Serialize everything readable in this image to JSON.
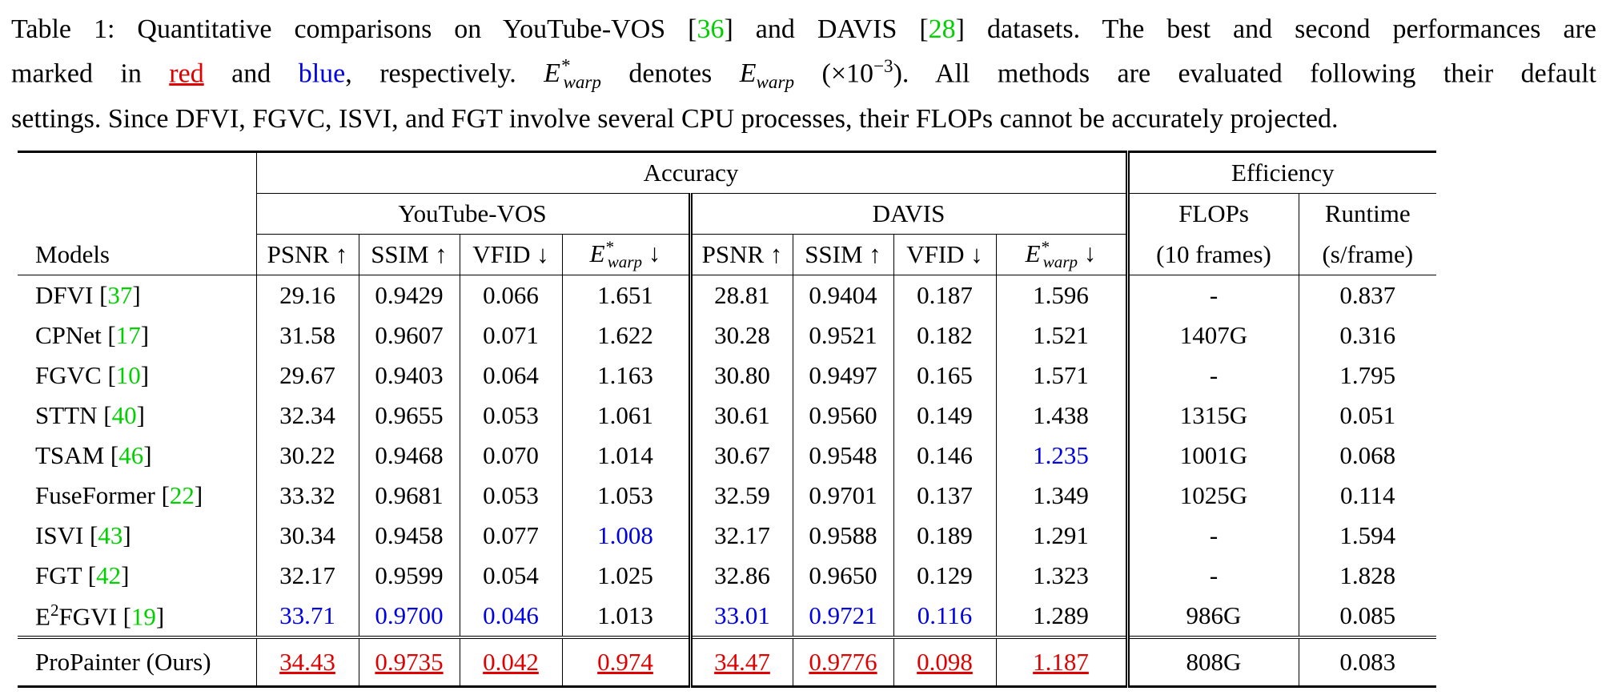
{
  "caption": {
    "line1_a": "Table 1: Quantitative comparisons on YouTube-VOS [",
    "ref1": "36",
    "line1_b": "] and DAVIS [",
    "ref2": "28",
    "line1_c": "] datasets. The best and second performances are",
    "line2_a": "marked in ",
    "red_word": "red",
    "line2_b": " and ",
    "blue_word": "blue",
    "line2_c": ", respectively. ",
    "line2_d": " denotes ",
    "line2_e": " (×10",
    "exp": "−3",
    "line2_f": "). All methods are evaluated following their default",
    "line3": "settings. Since DFVI, FGVC, ISVI, and FGT involve several CPU processes, their FLOPs cannot be accurately projected."
  },
  "headers": {
    "accuracy": "Accuracy",
    "efficiency": "Efficiency",
    "youtube": "YouTube-VOS",
    "davis": "DAVIS",
    "flops": "FLOPs",
    "runtime": "Runtime",
    "flops_sub": "(10 frames)",
    "runtime_sub": "(s/frame)",
    "models": "Models",
    "psnr": "PSNR ↑",
    "ssim": "SSIM ↑",
    "vfid": "VFID ↓",
    "ewarp_E": "E",
    "ewarp_sup": "*",
    "ewarp_sub": "warp",
    "ewarp_arrow": " ↓"
  },
  "rows": [
    {
      "name": "DFVI [",
      "ref": "37",
      "close": "]",
      "yt": [
        "29.16",
        "0.9429",
        "0.066",
        "1.651"
      ],
      "dv": [
        "28.81",
        "0.9404",
        "0.187",
        "1.596"
      ],
      "flops": "-",
      "runtime": "0.837"
    },
    {
      "name": "CPNet [",
      "ref": "17",
      "close": "]",
      "yt": [
        "31.58",
        "0.9607",
        "0.071",
        "1.622"
      ],
      "dv": [
        "30.28",
        "0.9521",
        "0.182",
        "1.521"
      ],
      "flops": "1407G",
      "runtime": "0.316"
    },
    {
      "name": "FGVC [",
      "ref": "10",
      "close": "]",
      "yt": [
        "29.67",
        "0.9403",
        "0.064",
        "1.163"
      ],
      "dv": [
        "30.80",
        "0.9497",
        "0.165",
        "1.571"
      ],
      "flops": "-",
      "runtime": "1.795"
    },
    {
      "name": "STTN [",
      "ref": "40",
      "close": "]",
      "yt": [
        "32.34",
        "0.9655",
        "0.053",
        "1.061"
      ],
      "dv": [
        "30.61",
        "0.9560",
        "0.149",
        "1.438"
      ],
      "flops": "1315G",
      "runtime": "0.051"
    },
    {
      "name": "TSAM [",
      "ref": "46",
      "close": "]",
      "yt": [
        "30.22",
        "0.9468",
        "0.070",
        "1.014"
      ],
      "dv": [
        "30.67",
        "0.9548",
        "0.146",
        "1.235"
      ],
      "flops": "1001G",
      "runtime": "0.068"
    },
    {
      "name": "FuseFormer [",
      "ref": "22",
      "close": "]",
      "yt": [
        "33.32",
        "0.9681",
        "0.053",
        "1.053"
      ],
      "dv": [
        "32.59",
        "0.9701",
        "0.137",
        "1.349"
      ],
      "flops": "1025G",
      "runtime": "0.114"
    },
    {
      "name": "ISVI [",
      "ref": "43",
      "close": "]",
      "yt": [
        "30.34",
        "0.9458",
        "0.077",
        "1.008"
      ],
      "dv": [
        "32.17",
        "0.9588",
        "0.189",
        "1.291"
      ],
      "flops": "-",
      "runtime": "1.594"
    },
    {
      "name": "FGT [",
      "ref": "42",
      "close": "]",
      "yt": [
        "32.17",
        "0.9599",
        "0.054",
        "1.025"
      ],
      "dv": [
        "32.86",
        "0.9650",
        "0.129",
        "1.323"
      ],
      "flops": "-",
      "runtime": "1.828"
    },
    {
      "name_pre": "E",
      "name_sup": "2",
      "name": "FGVI [",
      "ref": "19",
      "close": "]",
      "yt": [
        "33.71",
        "0.9700",
        "0.046",
        "1.013"
      ],
      "dv": [
        "33.01",
        "0.9721",
        "0.116",
        "1.289"
      ],
      "flops": "986G",
      "runtime": "0.085"
    },
    {
      "name": "ProPainter (Ours)",
      "yt": [
        "34.43",
        "0.9735",
        "0.042",
        "0.974"
      ],
      "dv": [
        "34.47",
        "0.9776",
        "0.098",
        "1.187"
      ],
      "flops": "808G",
      "runtime": "0.083"
    }
  ],
  "colors": {
    "best": "#e00000",
    "second": "#0000e6",
    "citation": "#00d000"
  }
}
